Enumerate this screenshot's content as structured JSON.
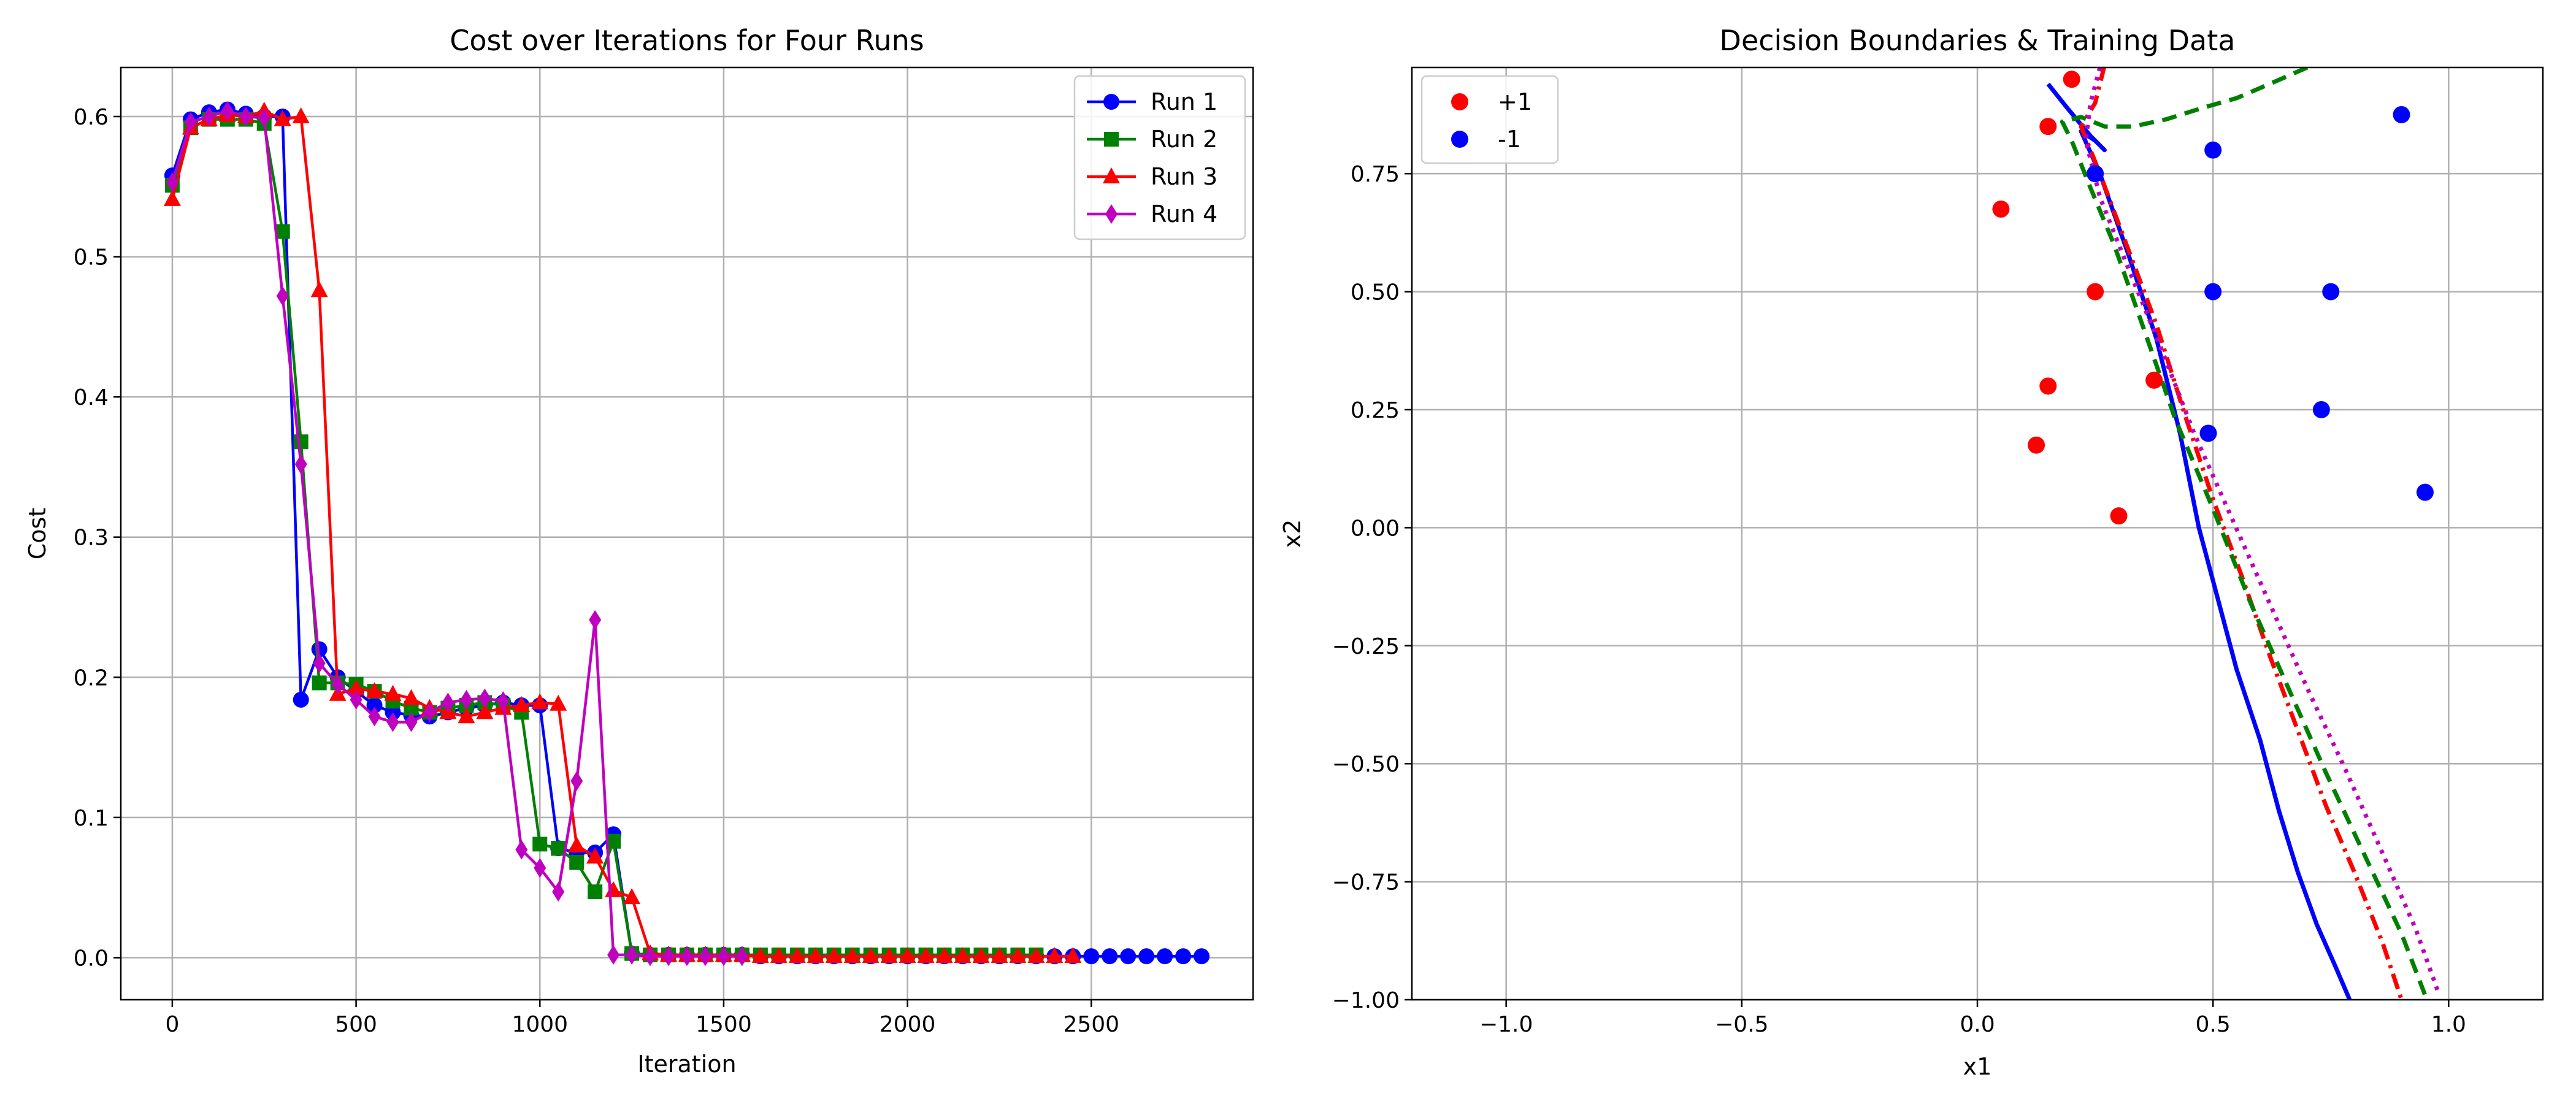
{
  "chart_data": [
    {
      "type": "line",
      "title": "Cost over Iterations for Four Runs",
      "xlabel": "Iteration",
      "ylabel": "Cost",
      "xlim": [
        -140,
        2940
      ],
      "ylim": [
        -0.03,
        0.635
      ],
      "xticks": [
        0,
        500,
        1000,
        1500,
        2000,
        2500
      ],
      "yticks": [
        0.0,
        0.1,
        0.2,
        0.3,
        0.4,
        0.5,
        0.6
      ],
      "xtick_labels": [
        "0",
        "500",
        "1000",
        "1500",
        "2000",
        "2500"
      ],
      "ytick_labels": [
        "0.0",
        "0.1",
        "0.2",
        "0.3",
        "0.4",
        "0.5",
        "0.6"
      ],
      "grid": true,
      "legend_position": "top-right",
      "series": [
        {
          "name": "Run 1",
          "color": "#0000ff",
          "marker": "circle",
          "x": [
            0,
            50,
            100,
            150,
            200,
            250,
            300,
            350,
            400,
            450,
            500,
            550,
            600,
            650,
            700,
            750,
            800,
            850,
            900,
            950,
            1000,
            1050,
            1100,
            1150,
            1200,
            1250,
            1300,
            1350,
            1400,
            1450,
            1500,
            1550,
            1600,
            1650,
            1700,
            1750,
            1800,
            1850,
            1900,
            1950,
            2000,
            2050,
            2100,
            2150,
            2200,
            2250,
            2300,
            2350,
            2400,
            2450,
            2500,
            2550,
            2600,
            2650,
            2700,
            2750,
            2800
          ],
          "y": [
            0.558,
            0.598,
            0.603,
            0.605,
            0.602,
            0.6,
            0.6,
            0.184,
            0.22,
            0.2,
            0.19,
            0.18,
            0.175,
            0.173,
            0.172,
            0.175,
            0.178,
            0.18,
            0.182,
            0.18,
            0.18,
            0.078,
            0.075,
            0.075,
            0.088,
            0.003,
            0.002,
            0.002,
            0.002,
            0.002,
            0.002,
            0.002,
            0.001,
            0.001,
            0.001,
            0.001,
            0.001,
            0.001,
            0.001,
            0.001,
            0.001,
            0.001,
            0.001,
            0.001,
            0.001,
            0.001,
            0.001,
            0.001,
            0.001,
            0.001,
            0.001,
            0.001,
            0.001,
            0.001,
            0.001,
            0.001,
            0.001
          ]
        },
        {
          "name": "Run 2",
          "color": "#008000",
          "marker": "square",
          "x": [
            0,
            50,
            100,
            150,
            200,
            250,
            300,
            350,
            400,
            450,
            500,
            550,
            600,
            650,
            700,
            750,
            800,
            850,
            900,
            950,
            1000,
            1050,
            1100,
            1150,
            1200,
            1250,
            1300,
            1350,
            1400,
            1450,
            1500,
            1550,
            1600,
            1650,
            1700,
            1750,
            1800,
            1850,
            1900,
            1950,
            2000,
            2050,
            2100,
            2150,
            2200,
            2250,
            2300,
            2350
          ],
          "y": [
            0.551,
            0.592,
            0.598,
            0.598,
            0.598,
            0.595,
            0.518,
            0.368,
            0.196,
            0.196,
            0.195,
            0.19,
            0.183,
            0.178,
            0.175,
            0.178,
            0.18,
            0.182,
            0.18,
            0.175,
            0.081,
            0.078,
            0.068,
            0.047,
            0.083,
            0.003,
            0.002,
            0.002,
            0.002,
            0.002,
            0.002,
            0.002,
            0.002,
            0.002,
            0.002,
            0.002,
            0.002,
            0.002,
            0.002,
            0.002,
            0.002,
            0.002,
            0.002,
            0.002,
            0.002,
            0.002,
            0.002,
            0.002
          ]
        },
        {
          "name": "Run 3",
          "color": "#ff0000",
          "marker": "triangle",
          "x": [
            0,
            50,
            100,
            150,
            200,
            250,
            300,
            350,
            400,
            450,
            500,
            550,
            600,
            650,
            700,
            750,
            800,
            850,
            900,
            950,
            1000,
            1050,
            1100,
            1150,
            1200,
            1250,
            1300,
            1350,
            1400,
            1450,
            1500,
            1550,
            1600,
            1650,
            1700,
            1750,
            1800,
            1850,
            1900,
            1950,
            2000,
            2050,
            2100,
            2150,
            2200,
            2250,
            2300,
            2350,
            2400,
            2450
          ],
          "y": [
            0.541,
            0.592,
            0.598,
            0.601,
            0.6,
            0.604,
            0.598,
            0.6,
            0.476,
            0.188,
            0.192,
            0.19,
            0.188,
            0.185,
            0.178,
            0.175,
            0.172,
            0.175,
            0.178,
            0.18,
            0.182,
            0.181,
            0.08,
            0.072,
            0.048,
            0.043,
            0.003,
            0.002,
            0.002,
            0.002,
            0.002,
            0.002,
            0.001,
            0.001,
            0.001,
            0.001,
            0.001,
            0.001,
            0.001,
            0.001,
            0.001,
            0.001,
            0.001,
            0.001,
            0.001,
            0.001,
            0.001,
            0.001,
            0.001,
            0.001
          ]
        },
        {
          "name": "Run 4",
          "color": "#bf00bf",
          "marker": "diamond",
          "x": [
            0,
            50,
            100,
            150,
            200,
            250,
            300,
            350,
            400,
            450,
            500,
            550,
            600,
            650,
            700,
            750,
            800,
            850,
            900,
            950,
            1000,
            1050,
            1100,
            1150,
            1200,
            1250,
            1300,
            1350,
            1400,
            1450,
            1500,
            1550
          ],
          "y": [
            0.553,
            0.596,
            0.6,
            0.604,
            0.6,
            0.599,
            0.472,
            0.352,
            0.21,
            0.195,
            0.184,
            0.172,
            0.168,
            0.168,
            0.175,
            0.182,
            0.184,
            0.185,
            0.183,
            0.077,
            0.064,
            0.047,
            0.126,
            0.241,
            0.002,
            0.002,
            0.001,
            0.001,
            0.001,
            0.001,
            0.001,
            0.001
          ]
        }
      ]
    },
    {
      "type": "scatter",
      "title": "Decision Boundaries & Training Data",
      "xlabel": "x1",
      "ylabel": "x2",
      "xlim": [
        -1.2,
        1.2
      ],
      "ylim": [
        -1.0,
        0.975
      ],
      "xticks": [
        -1.0,
        -0.5,
        0.0,
        0.5,
        1.0
      ],
      "yticks": [
        -1.0,
        -0.75,
        -0.5,
        -0.25,
        0.0,
        0.25,
        0.5,
        0.75
      ],
      "xtick_labels": [
        "−1.0",
        "−0.5",
        "0.0",
        "0.5",
        "1.0"
      ],
      "ytick_labels": [
        "−1.00",
        "−0.75",
        "−0.50",
        "−0.25",
        "0.00",
        "0.25",
        "0.50",
        "0.75"
      ],
      "grid": true,
      "legend_position": "top-left",
      "points": [
        {
          "name": "+1",
          "color": "#ff0000",
          "x": [
            0.05,
            0.125,
            0.15,
            0.15,
            0.2,
            0.25,
            0.3,
            0.375
          ],
          "y": [
            0.675,
            0.175,
            0.3,
            0.85,
            0.95,
            0.5,
            0.025,
            0.3125
          ]
        },
        {
          "name": "-1",
          "color": "#0000ff",
          "x": [
            0.25,
            0.5,
            0.5,
            0.75,
            0.9,
            0.49,
            0.73,
            0.95
          ],
          "y": [
            0.75,
            0.8,
            0.5,
            0.5,
            0.875,
            0.2,
            0.25,
            0.075
          ]
        }
      ],
      "boundaries": [
        {
          "color": "#0000ff",
          "style": "solid",
          "x": [
            0.15,
            0.19,
            0.24,
            0.27,
            0.25,
            0.22,
            0.26,
            0.32,
            0.38,
            0.43,
            0.47,
            0.51,
            0.55,
            0.6,
            0.64,
            0.68,
            0.72,
            0.76,
            0.79
          ],
          "y": [
            0.94,
            0.89,
            0.83,
            0.8,
            0.82,
            0.84,
            0.75,
            0.58,
            0.4,
            0.2,
            0.0,
            -0.15,
            -0.3,
            -0.45,
            -0.6,
            -0.73,
            -0.84,
            -0.93,
            -1.0
          ]
        },
        {
          "color": "#ff0000",
          "style": "dashdot",
          "x": [
            0.27,
            0.25,
            0.22,
            0.26,
            0.32,
            0.38,
            0.44,
            0.5,
            0.56,
            0.62,
            0.68,
            0.74,
            0.8,
            0.86,
            0.9
          ],
          "y": [
            0.98,
            0.9,
            0.85,
            0.75,
            0.59,
            0.43,
            0.24,
            0.06,
            -0.1,
            -0.27,
            -0.43,
            -0.59,
            -0.73,
            -0.88,
            -1.0
          ]
        },
        {
          "color": "#008000",
          "style": "dashed",
          "x": [
            0.7,
            0.62,
            0.55,
            0.48,
            0.4,
            0.33,
            0.27,
            0.22,
            0.18,
            0.2,
            0.24,
            0.29,
            0.35,
            0.42,
            0.5,
            0.58,
            0.66,
            0.74,
            0.82,
            0.9,
            0.95
          ],
          "y": [
            0.975,
            0.94,
            0.91,
            0.89,
            0.865,
            0.85,
            0.85,
            0.87,
            0.86,
            0.82,
            0.72,
            0.6,
            0.43,
            0.23,
            0.04,
            -0.16,
            -0.34,
            -0.52,
            -0.69,
            -0.86,
            -0.99
          ]
        },
        {
          "color": "#bf00bf",
          "style": "dotted",
          "x": [
            0.26,
            0.24,
            0.23,
            0.26,
            0.32,
            0.39,
            0.46,
            0.54,
            0.62,
            0.7,
            0.78,
            0.86,
            0.93,
            0.98
          ],
          "y": [
            0.975,
            0.9,
            0.82,
            0.7,
            0.55,
            0.38,
            0.2,
            0.02,
            -0.16,
            -0.34,
            -0.51,
            -0.69,
            -0.85,
            -0.99
          ]
        }
      ]
    }
  ]
}
